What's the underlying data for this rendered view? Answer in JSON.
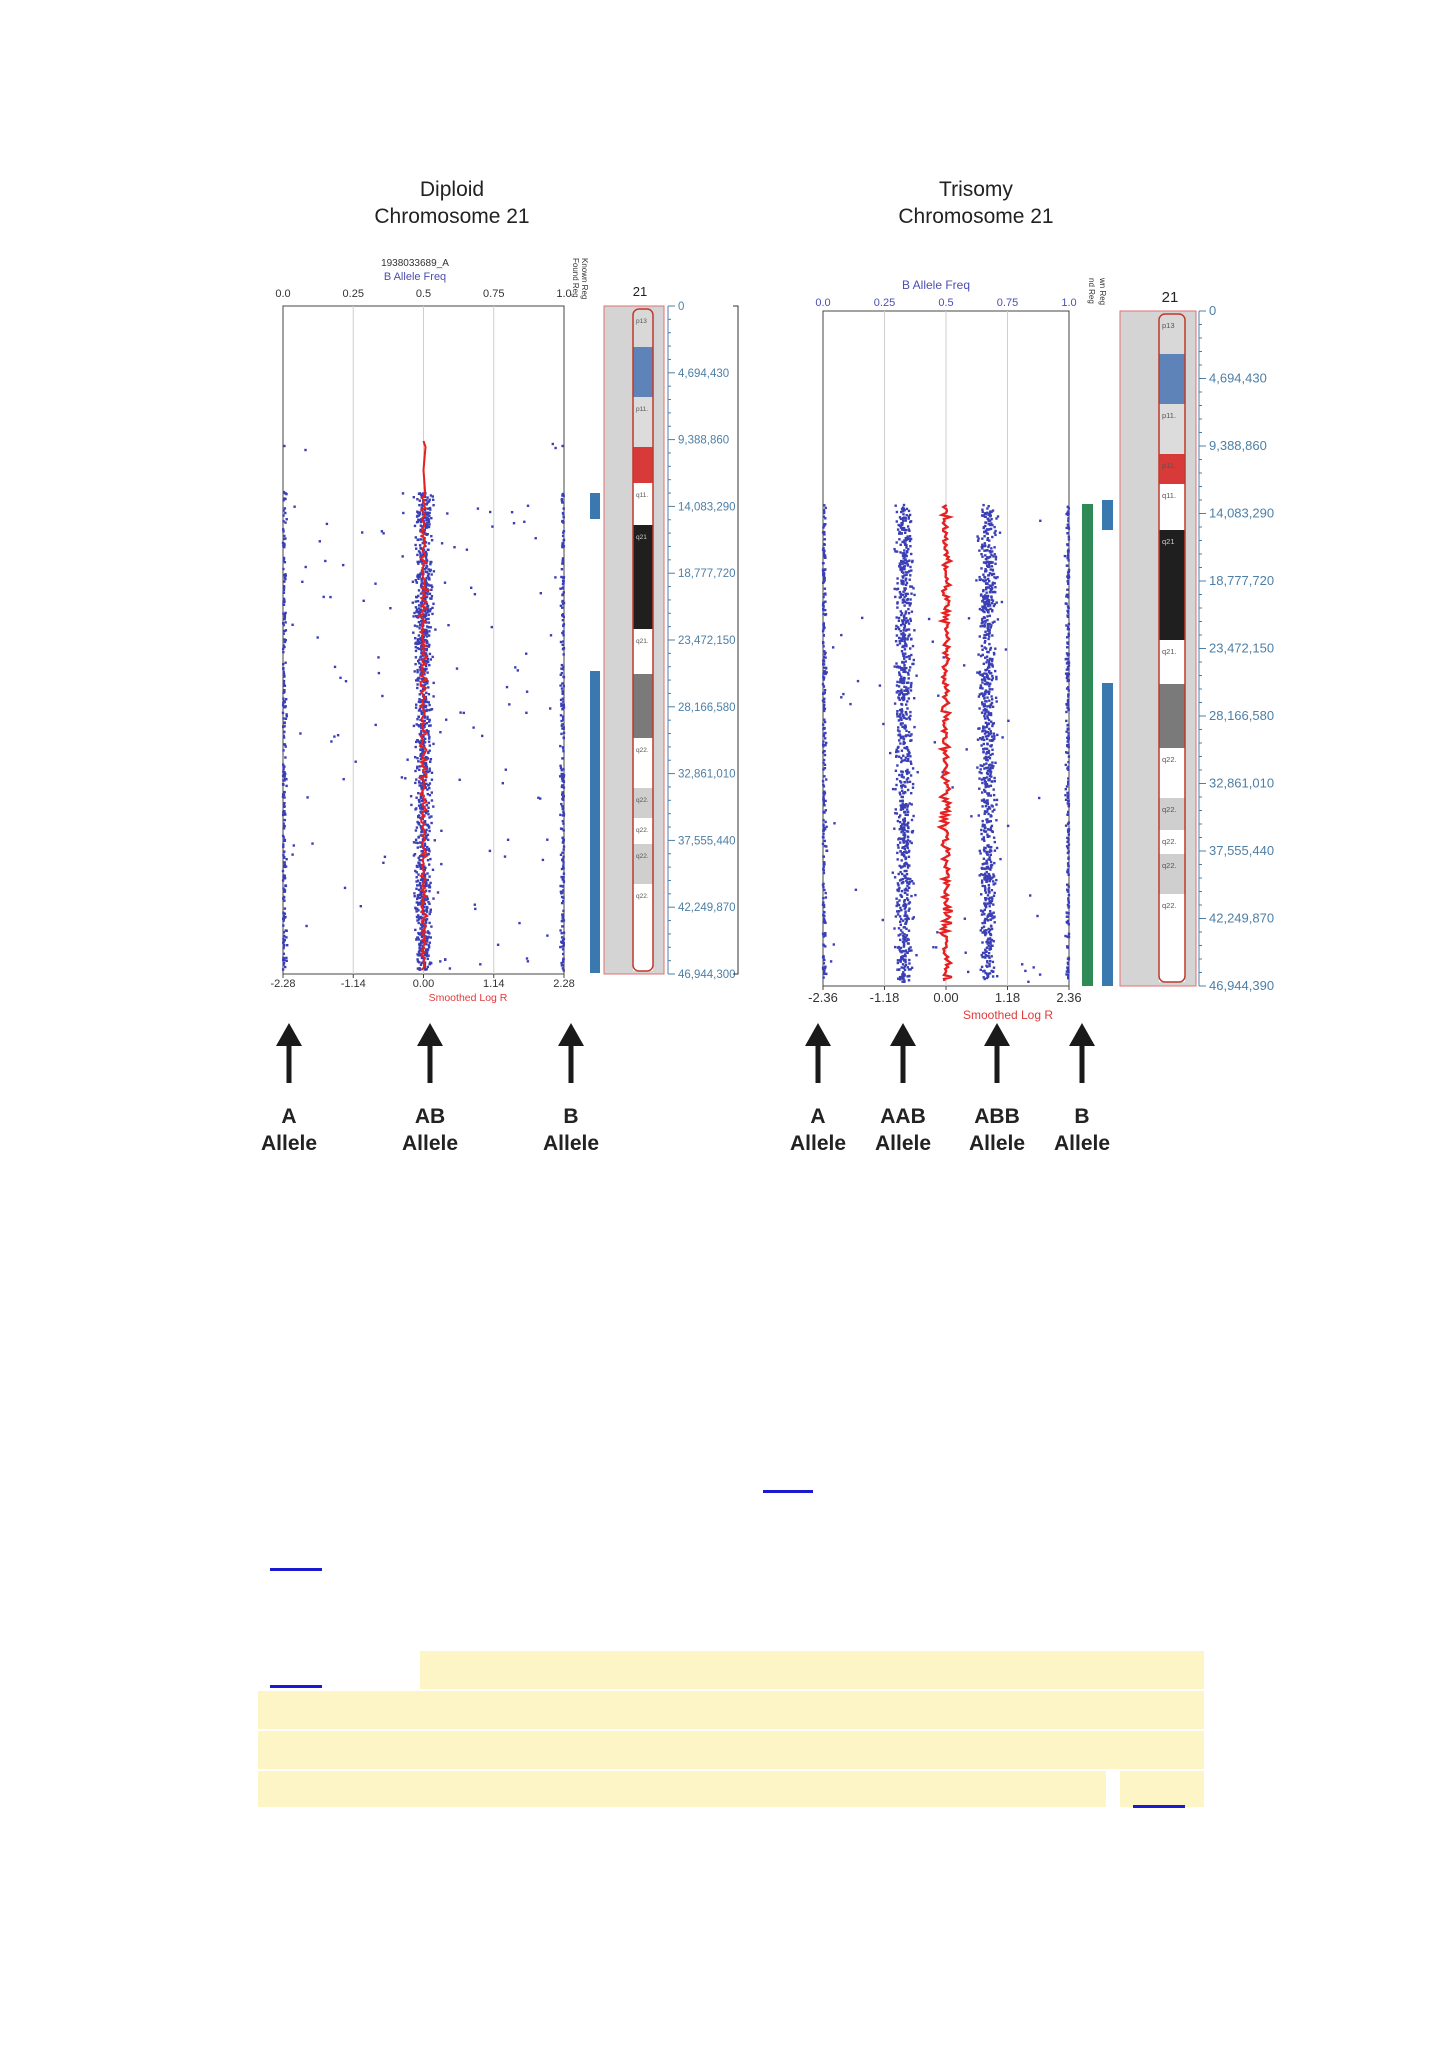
{
  "chart_data": [
    {
      "type": "scatter",
      "title": "Diploid",
      "subtitle": "Chromosome 21",
      "sample_label": "1938033689_A",
      "top_axis_label": "B Allele Freq",
      "top_ticks": [
        "0.0",
        "0.25",
        "0.5",
        "0.75",
        "1.0"
      ],
      "bottom_axis_label": "Smoothed Log R",
      "bottom_ticks": [
        "-2.28",
        "-1.14",
        "0.00",
        "1.14",
        "2.28"
      ],
      "xlim": [
        0,
        1
      ],
      "ylim": [
        0,
        46944390
      ],
      "track_labels": [
        "Known Reg",
        "Found Reg"
      ],
      "chromosome_label": "21",
      "bands": [
        "p13",
        "p11.",
        "q11.",
        "q21",
        "q21.",
        "q22.",
        "q22.",
        "q22.",
        "q22.",
        "q22."
      ],
      "position_ticks": [
        "0",
        "4,694,430",
        "9,388,860",
        "14,083,290",
        "18,777,720",
        "23,472,150",
        "28,166,580",
        "32,861,010",
        "37,555,440",
        "42,249,870",
        "46,944,300"
      ],
      "genotype_clusters": [
        {
          "label": "A",
          "sub": "Allele",
          "b_allele_freq": 0.0
        },
        {
          "label": "AB",
          "sub": "Allele",
          "b_allele_freq": 0.5
        },
        {
          "label": "B",
          "sub": "Allele",
          "b_allele_freq": 1.0
        }
      ],
      "series": [
        {
          "name": "B Allele Freq",
          "color": "#3b3fb5"
        },
        {
          "name": "Smoothed Log R",
          "color": "#e62020"
        }
      ]
    },
    {
      "type": "scatter",
      "title": "Trisomy",
      "subtitle": "Chromosome 21",
      "top_axis_label": "B Allele Freq",
      "top_ticks": [
        "0.0",
        "0.25",
        "0.5",
        "0.75",
        "1.0"
      ],
      "bottom_axis_label": "Smoothed Log R",
      "bottom_ticks": [
        "-2.36",
        "-1.18",
        "0.00",
        "1.18",
        "2.36"
      ],
      "xlim": [
        0,
        1
      ],
      "ylim": [
        0,
        46944390
      ],
      "track_labels": [
        "wn Reg",
        "nd Reg"
      ],
      "chromosome_label": "21",
      "bands": [
        "p13",
        "p11.",
        "p11.",
        "q11.",
        "q21",
        "q21.",
        "q22.",
        "q22.",
        "q22.",
        "q22.",
        "q22."
      ],
      "position_ticks": [
        "0",
        "4,694,430",
        "9,388,860",
        "14,083,290",
        "18,777,720",
        "23,472,150",
        "28,166,580",
        "32,861,010",
        "37,555,440",
        "42,249,870",
        "46,944,390"
      ],
      "genotype_clusters": [
        {
          "label": "A",
          "sub": "Allele",
          "b_allele_freq": 0.0
        },
        {
          "label": "AAB",
          "sub": "Allele",
          "b_allele_freq": 0.33
        },
        {
          "label": "ABB",
          "sub": "Allele",
          "b_allele_freq": 0.67
        },
        {
          "label": "B",
          "sub": "Allele",
          "b_allele_freq": 1.0
        }
      ],
      "series": [
        {
          "name": "B Allele Freq",
          "color": "#3b3fb5"
        },
        {
          "name": "Smoothed Log R",
          "color": "#e62020"
        }
      ]
    }
  ]
}
